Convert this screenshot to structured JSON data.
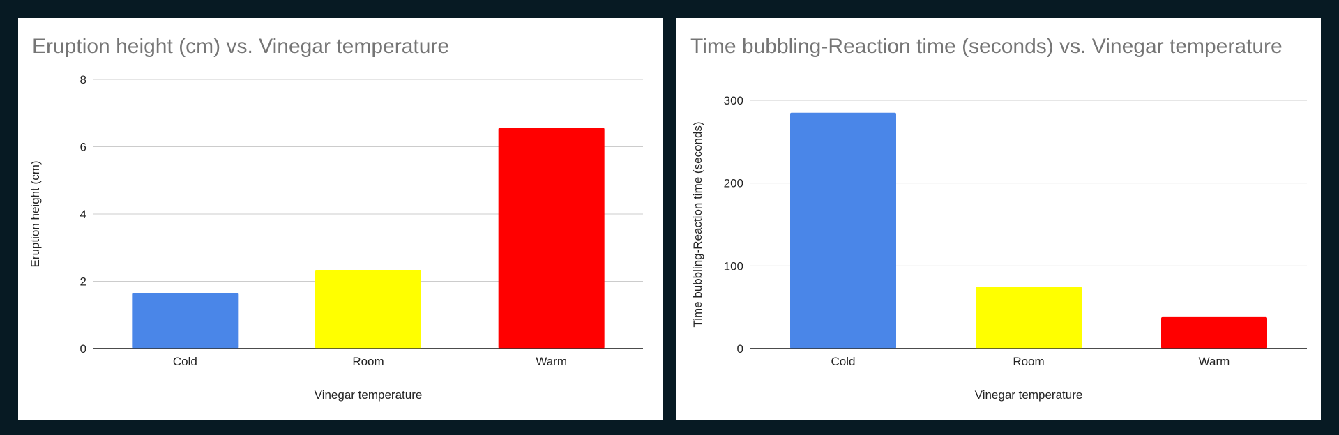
{
  "chart_data": [
    {
      "type": "bar",
      "title": "Eruption height (cm) vs. Vinegar temperature",
      "xlabel": "Vinegar temperature",
      "ylabel": "Eruption height (cm)",
      "categories": [
        "Cold",
        "Room",
        "Warm"
      ],
      "values": [
        1.65,
        2.33,
        6.56
      ],
      "bar_colors": [
        "#4a86e8",
        "#ffff00",
        "#ff0000"
      ],
      "ylim": [
        0,
        8
      ],
      "yticks": [
        0,
        2,
        4,
        6,
        8
      ],
      "grid": true,
      "legend": "none"
    },
    {
      "type": "bar",
      "title": "Time bubbling-Reaction time (seconds) vs. Vinegar temperature",
      "xlabel": "Vinegar temperature",
      "ylabel": "Time bubbling-Reaction time (seconds)",
      "categories": [
        "Cold",
        "Room",
        "Warm"
      ],
      "values": [
        285,
        75,
        38
      ],
      "bar_colors": [
        "#4a86e8",
        "#ffff00",
        "#ff0000"
      ],
      "ylim": [
        0,
        300
      ],
      "yticks": [
        0,
        100,
        200,
        300
      ],
      "grid": true,
      "legend": "none"
    }
  ]
}
